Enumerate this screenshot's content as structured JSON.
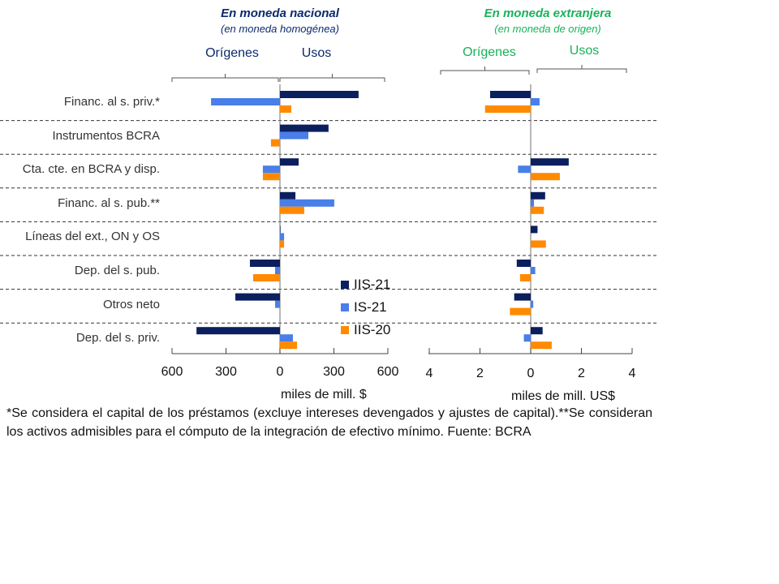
{
  "panels": [
    {
      "title": "En moneda nacional",
      "subtitle": "(en moneda homogénea)",
      "origenes": "Orígenes",
      "usos": "Usos",
      "ticks": [
        "600",
        "300",
        "0",
        "300",
        "600"
      ],
      "axis_label": "miles de mill. $"
    },
    {
      "title": "En moneda extranjera",
      "subtitle": "(en moneda de origen)",
      "origenes": "Orígenes",
      "usos": "Usos",
      "ticks": [
        "4",
        "2",
        "0",
        "2",
        "4"
      ],
      "axis_label": "miles de mill. US$"
    }
  ],
  "legend": [
    "IIS-21",
    "IS-21",
    "IIS-20"
  ],
  "colors": {
    "IIS-21": "#0b1f5e",
    "IS-21": "#4a7ee8",
    "IIS-20": "#ff8a00",
    "nacional_title": "#0b2a6e",
    "extranjera_title": "#19b25a"
  },
  "footnote": "*Se considera el capital de los préstamos (excluye intereses devengados y ajustes de capital).**Se consideran los activos admisibles para el cómputo de la integración de efectivo mínimo. Fuente: BCRA",
  "chart_data": [
    {
      "type": "bar",
      "orientation": "horizontal",
      "title": "En moneda nacional",
      "subtitle": "(en moneda homogénea)",
      "xlabel": "miles de mill. $",
      "xlim": [
        -600,
        600
      ],
      "xticks": [
        -600,
        -300,
        0,
        300,
        600
      ],
      "grid": "dashed horizontal separators",
      "legend_position": "inside-bottom-right",
      "categories": [
        "Financ. al s. priv.*",
        "Instrumentos BCRA",
        "Cta. cte. en BCRA y disp.",
        "Financ. al s. pub.**",
        "Líneas del ext., ON y OS",
        "Dep. del s. pub.",
        "Otros neto",
        "Dep. del s. priv."
      ],
      "series": [
        {
          "name": "IIS-21",
          "values": [
            437,
            270,
            104,
            86,
            3,
            -167,
            -248,
            -464
          ]
        },
        {
          "name": "IS-21",
          "values": [
            -383,
            158,
            -95,
            302,
            23,
            -27,
            -27,
            72
          ]
        },
        {
          "name": "IIS-20",
          "values": [
            63,
            -50,
            -95,
            135,
            23,
            -149,
            0,
            95
          ]
        }
      ]
    },
    {
      "type": "bar",
      "orientation": "horizontal",
      "title": "En moneda extranjera",
      "subtitle": "(en moneda de origen)",
      "xlabel": "miles de mill. US$",
      "xlim": [
        -4,
        4
      ],
      "xticks": [
        -4,
        -2,
        0,
        2,
        4
      ],
      "grid": "dashed horizontal separators",
      "categories": [
        "Financ. al s. priv.*",
        "Instrumentos BCRA",
        "Cta. cte. en BCRA y disp.",
        "Financ. al s. pub.**",
        "Líneas del ext., ON y OS",
        "Dep. del s. pub.",
        "Otros neto",
        "Dep. del s. priv."
      ],
      "series": [
        {
          "name": "IIS-21",
          "values": [
            -1.6,
            0,
            1.5,
            0.57,
            0.27,
            -0.55,
            -0.65,
            0.47
          ]
        },
        {
          "name": "IS-21",
          "values": [
            0.35,
            0,
            -0.5,
            0.13,
            0,
            0.18,
            0.1,
            -0.27
          ]
        },
        {
          "name": "IIS-20",
          "values": [
            -1.8,
            0,
            1.15,
            0.52,
            0.6,
            -0.42,
            -0.82,
            0.83
          ]
        }
      ]
    }
  ]
}
